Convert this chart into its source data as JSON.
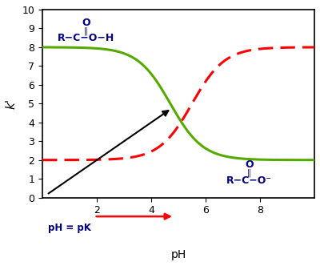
{
  "title": "",
  "xlabel": "pH",
  "ylabel": "k'",
  "xlim": [
    0,
    10
  ],
  "ylim": [
    0,
    10
  ],
  "xticks": [
    2,
    4,
    6,
    8
  ],
  "yticks": [
    0,
    1,
    2,
    3,
    4,
    5,
    6,
    7,
    8,
    9,
    10
  ],
  "green_curve": {
    "color": "#55aa00",
    "start_val": 8.0,
    "end_val": 2.0,
    "midpoint": 4.7
  },
  "red_curve": {
    "color": "#ff0000",
    "start_val": 2.0,
    "end_val": 8.0,
    "midpoint": 5.5
  },
  "black_arrow": {
    "x_start": 0.15,
    "y_start": 0.15,
    "x_end": 4.75,
    "y_end": 4.75
  },
  "annotation_color": "#000080",
  "background_color": "#ffffff"
}
